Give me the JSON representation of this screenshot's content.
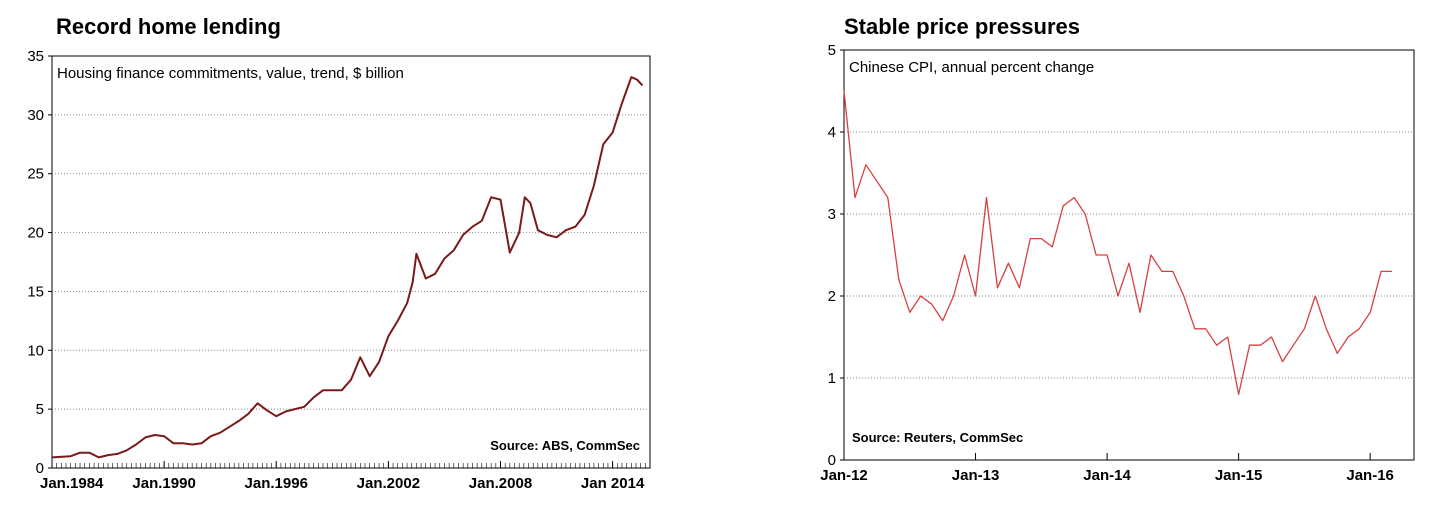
{
  "chart_data": [
    {
      "type": "line",
      "title": "Record home lending",
      "subtitle": "Housing finance commitments, value, trend, $ billion",
      "source": "Source: ABS, CommSec",
      "xlabel": "",
      "ylabel": "",
      "ylim": [
        0,
        35
      ],
      "yticks": [
        0,
        5,
        10,
        15,
        20,
        25,
        30,
        35
      ],
      "xlim": [
        1984.0,
        2016.0
      ],
      "xtick_values": [
        1984,
        1990,
        1996,
        2002,
        2008,
        2014
      ],
      "xtick_labels": [
        "Jan.1984",
        "Jan.1990",
        "Jan.1996",
        "Jan.2002",
        "Jan.2008",
        "Jan 2014"
      ],
      "grid": true,
      "line_color": "#7a1a1a",
      "series": [
        {
          "x": [
            1984.0,
            1985.0,
            1985.5,
            1986.0,
            1986.5,
            1987.0,
            1987.5,
            1988.0,
            1988.5,
            1989.0,
            1989.5,
            1990.0,
            1990.5,
            1991.0,
            1991.5,
            1992.0,
            1992.5,
            1993.0,
            1993.5,
            1994.0,
            1994.5,
            1995.0,
            1995.5,
            1996.0,
            1996.5,
            1997.0,
            1997.5,
            1998.0,
            1998.5,
            1999.0,
            1999.5,
            2000.0,
            2000.5,
            2001.0,
            2001.5,
            2002.0,
            2002.5,
            2003.0,
            2003.3,
            2003.5,
            2004.0,
            2004.5,
            2005.0,
            2005.5,
            2006.0,
            2006.5,
            2007.0,
            2007.5,
            2008.0,
            2008.5,
            2009.0,
            2009.3,
            2009.6,
            2010.0,
            2010.5,
            2011.0,
            2011.5,
            2012.0,
            2012.5,
            2013.0,
            2013.5,
            2014.0,
            2014.5,
            2015.0,
            2015.3,
            2015.6
          ],
          "y": [
            0.9,
            1.0,
            1.3,
            1.3,
            0.9,
            1.1,
            1.2,
            1.5,
            2.0,
            2.6,
            2.8,
            2.7,
            2.1,
            2.1,
            2.0,
            2.1,
            2.7,
            3.0,
            3.5,
            4.0,
            4.6,
            5.5,
            4.9,
            4.4,
            4.8,
            5.0,
            5.2,
            6.0,
            6.6,
            6.6,
            6.6,
            7.5,
            9.4,
            7.8,
            9.0,
            11.2,
            12.5,
            14.0,
            15.8,
            18.2,
            16.1,
            16.5,
            17.8,
            18.5,
            19.8,
            20.5,
            21.0,
            23.0,
            22.8,
            18.3,
            20.0,
            23.0,
            22.5,
            20.2,
            19.8,
            19.6,
            20.2,
            20.5,
            21.5,
            24.0,
            27.5,
            28.5,
            31.0,
            33.2,
            33.0,
            32.5
          ]
        }
      ]
    },
    {
      "type": "line",
      "title": "Stable price pressures",
      "subtitle": "Chinese CPI, annual percent change",
      "source": "Source: Reuters, CommSec",
      "xlabel": "",
      "ylabel": "",
      "ylim": [
        0,
        5
      ],
      "yticks": [
        0,
        1,
        2,
        3,
        4,
        5
      ],
      "xlim": [
        0,
        52
      ],
      "xtick_values": [
        0,
        12,
        24,
        36,
        48
      ],
      "xtick_labels": [
        "Jan-12",
        "Jan-13",
        "Jan-14",
        "Jan-15",
        "Jan-16"
      ],
      "grid": true,
      "line_color": "#d94040",
      "series": [
        {
          "x": [
            0,
            1,
            2,
            3,
            4,
            5,
            6,
            7,
            8,
            9,
            10,
            11,
            12,
            13,
            14,
            15,
            16,
            17,
            18,
            19,
            20,
            21,
            22,
            23,
            24,
            25,
            26,
            27,
            28,
            29,
            30,
            31,
            32,
            33,
            34,
            35,
            36,
            37,
            38,
            39,
            40,
            41,
            42,
            43,
            44,
            45,
            46,
            47,
            48,
            49,
            50
          ],
          "y": [
            4.5,
            3.2,
            3.6,
            3.4,
            3.2,
            2.2,
            1.8,
            2.0,
            1.9,
            1.7,
            2.0,
            2.5,
            2.0,
            3.2,
            2.1,
            2.4,
            2.1,
            2.7,
            2.7,
            2.6,
            3.1,
            3.2,
            3.0,
            2.5,
            2.5,
            2.0,
            2.4,
            1.8,
            2.5,
            2.3,
            2.3,
            2.0,
            1.6,
            1.6,
            1.4,
            1.5,
            0.8,
            1.4,
            1.4,
            1.5,
            1.2,
            1.4,
            1.6,
            2.0,
            1.6,
            1.3,
            1.5,
            1.6,
            1.8,
            2.3,
            2.3
          ]
        }
      ]
    }
  ]
}
